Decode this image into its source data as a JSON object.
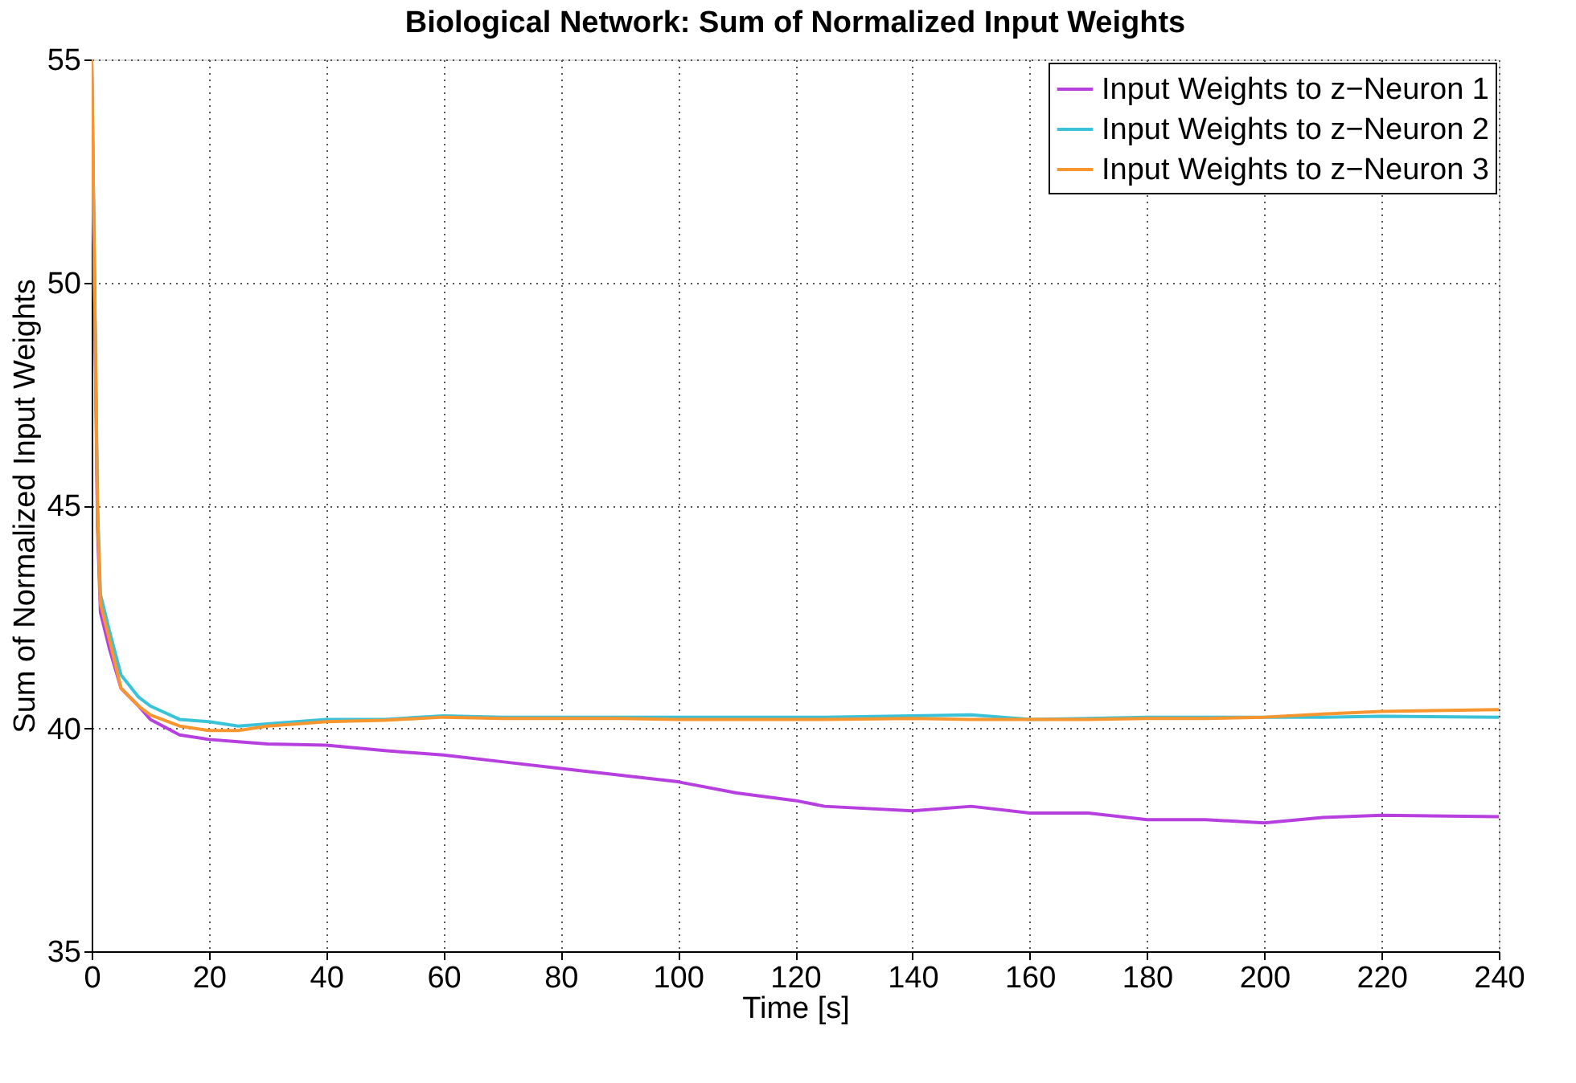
{
  "chart_data": {
    "type": "line",
    "title": "Biological Network: Sum of Normalized Input Weights",
    "xlabel": "Time [s]",
    "ylabel": "Sum of Normalized Input Weights",
    "x": [
      0,
      1,
      1.5,
      3,
      5,
      8,
      10,
      15,
      20,
      25,
      30,
      40,
      50,
      60,
      70,
      80,
      90,
      100,
      110,
      120,
      125,
      140,
      150,
      160,
      170,
      180,
      190,
      200,
      210,
      220,
      240
    ],
    "series": [
      {
        "name": "Input Weights to z−Neuron 1",
        "color": "#b73fe0",
        "values": [
          55,
          44.5,
          42.6,
          41.8,
          40.9,
          40.5,
          40.2,
          39.85,
          39.75,
          39.7,
          39.65,
          39.62,
          39.5,
          39.4,
          39.25,
          39.1,
          38.95,
          38.8,
          38.55,
          38.38,
          38.25,
          38.15,
          38.25,
          38.1,
          38.1,
          37.95,
          37.95,
          37.88,
          38.0,
          38.05,
          38.02
        ]
      },
      {
        "name": "Input Weights to z−Neuron 2",
        "color": "#3ac3d8",
        "values": [
          55,
          45,
          43,
          42.2,
          41.2,
          40.7,
          40.5,
          40.2,
          40.15,
          40.05,
          40.1,
          40.2,
          40.2,
          40.28,
          40.25,
          40.25,
          40.25,
          40.25,
          40.25,
          40.25,
          40.25,
          40.28,
          40.3,
          40.2,
          40.22,
          40.25,
          40.25,
          40.25,
          40.25,
          40.27,
          40.25
        ]
      },
      {
        "name": "Input Weights to z−Neuron 3",
        "color": "#f7962f",
        "values": [
          55,
          44.8,
          42.8,
          42.0,
          40.9,
          40.5,
          40.3,
          40.05,
          39.95,
          39.95,
          40.05,
          40.15,
          40.18,
          40.25,
          40.22,
          40.22,
          40.22,
          40.2,
          40.2,
          40.2,
          40.2,
          40.22,
          40.2,
          40.2,
          40.2,
          40.22,
          40.22,
          40.25,
          40.32,
          40.38,
          40.42
        ]
      }
    ],
    "xlim": [
      0,
      240
    ],
    "xticks": [
      0,
      20,
      40,
      60,
      80,
      100,
      120,
      140,
      160,
      180,
      200,
      220,
      240
    ],
    "ylim": [
      35,
      55
    ],
    "yticks": [
      35,
      40,
      45,
      50,
      55
    ],
    "grid": true,
    "legend": "top right",
    "line_style": "solid",
    "marker": "none"
  }
}
